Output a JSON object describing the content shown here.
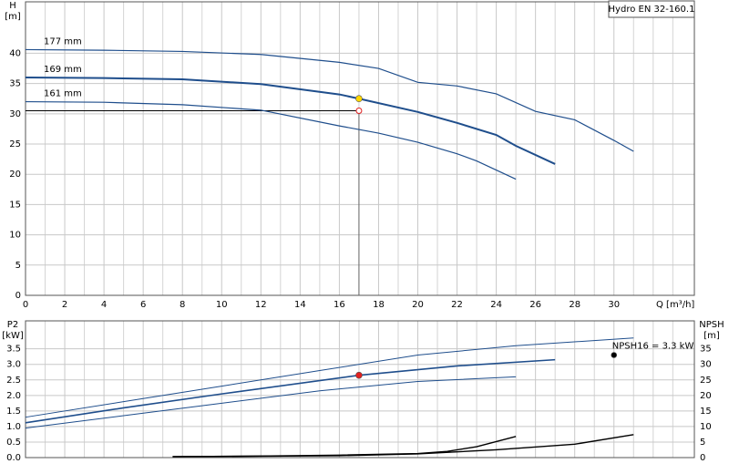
{
  "chart_data": [
    {
      "type": "line",
      "title": "Hydro EN 32-160.1",
      "y_label": "H",
      "y_unit": "[m]",
      "x_label": "Q [m³/h]",
      "xlim": [
        0,
        34.1
      ],
      "xticks": [
        0,
        2,
        4,
        6,
        8,
        10,
        12,
        14,
        16,
        18,
        20,
        22,
        24,
        26,
        28,
        30
      ],
      "x_minor_ticks": [
        1,
        3,
        5,
        7,
        9,
        11,
        13,
        15,
        17,
        19,
        21,
        23,
        25,
        27,
        29,
        31,
        32,
        33
      ],
      "ylim": [
        0,
        48.5
      ],
      "yticks": [
        0,
        5,
        10,
        15,
        20,
        25,
        30,
        35,
        40
      ],
      "grid": true,
      "series": [
        {
          "name": "177 mm",
          "color": "#1f4e8c",
          "width": 1.2,
          "x": [
            0,
            4,
            8,
            12,
            16,
            18,
            20,
            22,
            24,
            26,
            28,
            30,
            31
          ],
          "values": [
            40.6,
            40.5,
            40.3,
            39.8,
            38.5,
            37.5,
            35.2,
            34.6,
            33.3,
            30.4,
            29.0,
            25.6,
            23.8
          ]
        },
        {
          "name": "169 mm",
          "color": "#1f4e8c",
          "width": 2,
          "x": [
            0,
            4,
            8,
            12,
            16,
            17,
            20,
            22,
            24,
            25,
            27
          ],
          "values": [
            36.0,
            35.9,
            35.7,
            34.9,
            33.2,
            32.5,
            30.3,
            28.5,
            26.5,
            24.7,
            21.7
          ]
        },
        {
          "name": "161 mm",
          "color": "#1f4e8c",
          "width": 1.2,
          "x": [
            0,
            4,
            8,
            12,
            16,
            18,
            20,
            22,
            23,
            25
          ],
          "values": [
            32.0,
            31.9,
            31.5,
            30.6,
            28.0,
            26.8,
            25.3,
            23.4,
            22.2,
            19.2
          ]
        }
      ],
      "points": [
        {
          "x": 17,
          "y": 32.5,
          "color": "#ffd700"
        }
      ],
      "duty_point": {
        "x": 17,
        "y": 30.5,
        "color": "#e02020"
      }
    },
    {
      "type": "line",
      "y_label": "P2",
      "y_unit": "[kW]",
      "y2_label": "NPSH",
      "y2_unit": "[m]",
      "xlim": [
        0,
        34.1
      ],
      "xticks": [
        0,
        2,
        4,
        6,
        8,
        10,
        12,
        14,
        16,
        18,
        20,
        22,
        24,
        26,
        28,
        30
      ],
      "x_minor_ticks": [
        1,
        3,
        5,
        7,
        9,
        11,
        13,
        15,
        17,
        19,
        21,
        23,
        25,
        27,
        29,
        31,
        32,
        33
      ],
      "show_xtick_labels": false,
      "ylim": [
        0,
        4.4
      ],
      "yticks": [
        {
          "value": 0,
          "label": "0.0"
        },
        {
          "value": 0.5,
          "label": "0.5"
        },
        {
          "value": 1,
          "label": "1.0"
        },
        {
          "value": 1.5,
          "label": "1.5"
        },
        {
          "value": 2,
          "label": "2.0"
        },
        {
          "value": 2.5,
          "label": "2.5"
        },
        {
          "value": 3,
          "label": "3.0"
        },
        {
          "value": 3.5,
          "label": "3.5"
        }
      ],
      "y2lim": [
        0,
        44
      ],
      "y2ticks": [
        0,
        5,
        10,
        15,
        20,
        25,
        30,
        35
      ],
      "grid": true,
      "series": [
        {
          "color": "#1f4e8c",
          "width": 1,
          "x": [
            0,
            5,
            10,
            15,
            20,
            25,
            31
          ],
          "values": [
            1.3,
            1.8,
            2.3,
            2.8,
            3.3,
            3.6,
            3.85
          ]
        },
        {
          "color": "#1f4e8c",
          "width": 1.6,
          "x": [
            0,
            5,
            10,
            17,
            22,
            27
          ],
          "values": [
            1.12,
            1.6,
            2.05,
            2.65,
            2.95,
            3.15
          ]
        },
        {
          "color": "#1f4e8c",
          "width": 1,
          "x": [
            0,
            5,
            10,
            15,
            20,
            25
          ],
          "values": [
            0.95,
            1.35,
            1.75,
            2.15,
            2.45,
            2.6
          ]
        },
        {
          "color": "#000000",
          "width": 1.4,
          "axis": "y2",
          "x": [
            7.5,
            12,
            16,
            20,
            21.5,
            23,
            25
          ],
          "values": [
            0.3,
            0.5,
            0.8,
            1.3,
            2,
            3.5,
            6.8
          ]
        },
        {
          "color": "#000000",
          "width": 1.4,
          "axis": "y2",
          "x": [
            7.5,
            16,
            20,
            24,
            28,
            31
          ],
          "values": [
            0.3,
            0.6,
            1.2,
            2.5,
            4.3,
            7.4
          ]
        }
      ],
      "points": [
        {
          "x": 17,
          "y": 2.65,
          "color": "#e02020"
        },
        {
          "x": 30,
          "y": 3.3,
          "color": "#000000",
          "label": "NPSH16 = 3.3 kW"
        }
      ]
    }
  ]
}
